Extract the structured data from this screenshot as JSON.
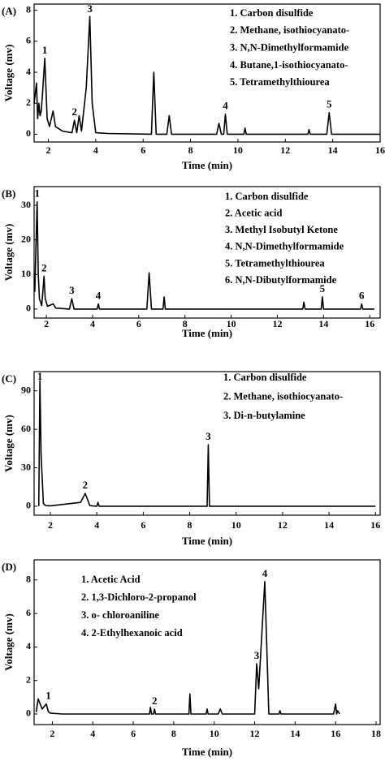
{
  "chart_data": [
    {
      "type": "line",
      "panel_label": "(A)",
      "xlabel": "Time (min)",
      "ylabel": "Voltage (mv)",
      "color": "#000000",
      "xlim": [
        1.4,
        16
      ],
      "ylim": [
        -0.5,
        8.4
      ],
      "xticks": [
        2,
        4,
        6,
        8,
        10,
        12,
        14,
        16
      ],
      "yticks": [
        0,
        2,
        4,
        6,
        8
      ],
      "legend_items": [
        "1. Carbon disulfide",
        "2. Methane, isothiocyanato-",
        "3. N,N-Dimethylformamide",
        "4. Butane,1-isothiocyanato-",
        "5. Tetramethylthiourea"
      ],
      "peak_labels": [
        {
          "label": "1",
          "x": 1.85
        },
        {
          "label": "2",
          "x": 3.1
        },
        {
          "label": "3",
          "x": 3.75
        },
        {
          "label": "4",
          "x": 9.47
        },
        {
          "label": "5",
          "x": 13.85
        }
      ],
      "x": [
        1.4,
        1.5,
        1.55,
        1.6,
        1.65,
        1.7,
        1.75,
        1.85,
        1.95,
        2.05,
        2.2,
        2.3,
        2.4,
        2.6,
        3.0,
        3.1,
        3.2,
        3.3,
        3.4,
        3.6,
        3.75,
        3.85,
        4.0,
        4.5,
        6.35,
        6.45,
        6.55,
        7.0,
        7.1,
        7.2,
        9.1,
        9.2,
        9.3,
        9.4,
        9.47,
        9.55,
        10.25,
        10.3,
        10.35,
        12.95,
        13.0,
        13.05,
        13.75,
        13.85,
        13.95,
        16
      ],
      "values": [
        2.0,
        3.3,
        1.0,
        2.0,
        1.2,
        1.5,
        2.5,
        4.9,
        1.0,
        0.5,
        1.5,
        0.5,
        0.4,
        0.2,
        0.1,
        0.9,
        0.1,
        1.2,
        0.2,
        3.0,
        7.6,
        2.0,
        0.1,
        0.05,
        0,
        4.0,
        0,
        0,
        1.2,
        0,
        0,
        0.7,
        0,
        0,
        1.3,
        0,
        0,
        0.4,
        0,
        0,
        0.3,
        0,
        0,
        1.4,
        0,
        0
      ]
    },
    {
      "type": "line",
      "panel_label": "(B)",
      "xlabel": "Time (min)",
      "ylabel": "Voltage (mv)",
      "color": "#000000",
      "xlim": [
        1.47,
        16.45
      ],
      "ylim": [
        -2.6,
        35.4
      ],
      "xticks": [
        2,
        4,
        6,
        8,
        10,
        12,
        14,
        16
      ],
      "yticks": [
        0,
        10,
        20,
        30
      ],
      "legend_items": [
        "1. Carbon disulfide",
        "2. Acetic acid",
        "3. Methyl Isobutyl Ketone",
        "4. N,N-Dimethylformamide",
        "5. Tetramethylthiourea",
        "6. N,N-Dibutylformamide"
      ],
      "peak_labels": [
        {
          "label": "1",
          "x": 1.6
        },
        {
          "label": "2",
          "x": 1.9
        },
        {
          "label": "3",
          "x": 3.1
        },
        {
          "label": "4",
          "x": 4.25
        },
        {
          "label": "5",
          "x": 13.95
        },
        {
          "label": "6",
          "x": 15.65
        }
      ],
      "x": [
        1.5,
        1.6,
        1.65,
        1.7,
        1.8,
        1.9,
        1.95,
        2.05,
        2.3,
        2.4,
        3.0,
        3.1,
        3.2,
        4.2,
        4.25,
        4.3,
        6.35,
        6.45,
        6.55,
        7.05,
        7.1,
        7.15,
        13.1,
        13.15,
        13.2,
        13.9,
        13.95,
        14.0,
        15.6,
        15.65,
        15.7,
        16.2
      ],
      "values": [
        5,
        31,
        10,
        3,
        1,
        9.5,
        3,
        0.8,
        1.5,
        0.3,
        0,
        3,
        0,
        0,
        1.5,
        0,
        0,
        10.5,
        0,
        0,
        3.5,
        0,
        0,
        2,
        0,
        0,
        3.5,
        0,
        0,
        1.5,
        0,
        0
      ]
    },
    {
      "type": "line",
      "panel_label": "(C)",
      "xlabel": "Time (min)",
      "ylabel": "Voltage (mv)",
      "color": "#000000",
      "xlim": [
        1.3,
        16.2
      ],
      "ylim": [
        -7,
        105
      ],
      "xticks": [
        2,
        4,
        6,
        8,
        10,
        12,
        14,
        16
      ],
      "yticks": [
        0,
        30,
        60,
        90
      ],
      "legend_items": [
        "1. Carbon disulfide",
        "2. Methane, isothiocyanato-",
        "3. Di-n-butylamine"
      ],
      "peak_labels": [
        {
          "label": "1",
          "x": 1.55
        },
        {
          "label": "2",
          "x": 3.5
        },
        {
          "label": "3",
          "x": 8.8
        }
      ],
      "x": [
        1.5,
        1.55,
        1.6,
        1.7,
        1.8,
        2.0,
        3.3,
        3.5,
        3.7,
        4.0,
        4.05,
        4.1,
        8.75,
        8.8,
        8.85,
        16
      ],
      "values": [
        0,
        98,
        40,
        2,
        0.5,
        0.3,
        3,
        10,
        0.5,
        0,
        3,
        0,
        0,
        48,
        0,
        0
      ]
    },
    {
      "type": "line",
      "panel_label": "(D)",
      "xlabel": "Time (min)",
      "ylabel": "Voltage (mv)",
      "color": "#000000",
      "xlim": [
        1.1,
        18.2
      ],
      "ylim": [
        -0.63,
        9.2
      ],
      "xticks": [
        2,
        4,
        6,
        8,
        10,
        12,
        14,
        16,
        18
      ],
      "yticks": [
        0,
        2,
        4,
        6,
        8
      ],
      "legend_items": [
        "1. Acetic Acid",
        "2. 1,3-Dichloro-2-propanol",
        "3. o- chloroaniline",
        "4. 2-Ethylhexanoic acid"
      ],
      "peak_labels": [
        {
          "label": "1",
          "x": 1.8
        },
        {
          "label": "2",
          "x": 7.05
        },
        {
          "label": "3",
          "x": 12.1
        },
        {
          "label": "4",
          "x": 12.5
        }
      ],
      "x": [
        1.2,
        1.3,
        1.5,
        1.7,
        1.8,
        1.9,
        2.5,
        6.8,
        6.85,
        6.9,
        7.0,
        7.05,
        7.1,
        8.75,
        8.8,
        8.85,
        9.6,
        9.65,
        9.7,
        10.2,
        10.3,
        10.4,
        12.0,
        12.1,
        12.2,
        12.5,
        12.7,
        13.2,
        13.25,
        13.3,
        15.9,
        16.0,
        16.05,
        16.1,
        16.2
      ],
      "values": [
        0.1,
        0.9,
        0.3,
        0.6,
        0.15,
        0.05,
        0,
        0,
        0.4,
        0,
        0,
        0.3,
        0,
        0,
        1.2,
        0,
        0,
        0.3,
        0,
        0,
        0.3,
        0,
        0,
        3.0,
        1.5,
        7.9,
        0,
        0,
        0.2,
        0,
        0,
        0.6,
        0,
        0.2,
        0
      ]
    }
  ]
}
